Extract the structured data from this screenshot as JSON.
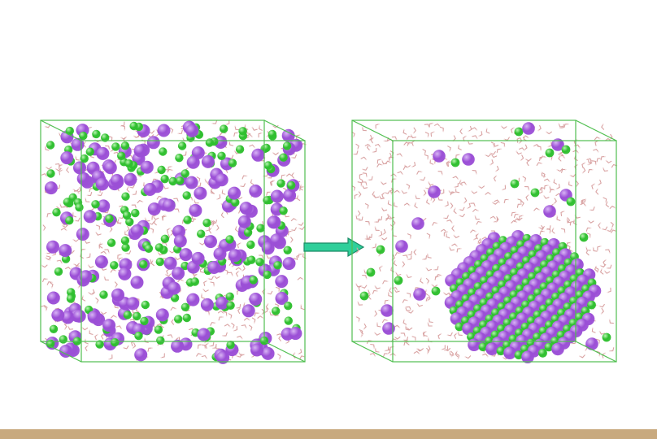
{
  "slide": {
    "background": "#ffffff",
    "footer_bar_color": "#c8a97e"
  },
  "colors": {
    "box_edge": "#4fbf4f",
    "water": "#d9a3a3",
    "water_hydrogen": "#f3dede",
    "cation": "#9b4fd6",
    "cation_highlight": "#d8b4f5",
    "anion": "#2fbf2f",
    "anion_highlight": "#b8f5b0",
    "arrow_fill": "#2fcf9a",
    "arrow_stroke": "#1a8a66"
  },
  "panels": [
    {
      "id": "before",
      "state": "dissolved",
      "icon": "cube-icon",
      "cation_count": 170,
      "anion_count": 170,
      "water_count": 520
    },
    {
      "id": "after",
      "state": "nucleated-crystal",
      "icon": "cube-icon",
      "cation_count": 150,
      "anion_count": 150,
      "water_count": 560
    }
  ],
  "arrow": {
    "icon": "right-arrow-icon",
    "direction": "right"
  }
}
